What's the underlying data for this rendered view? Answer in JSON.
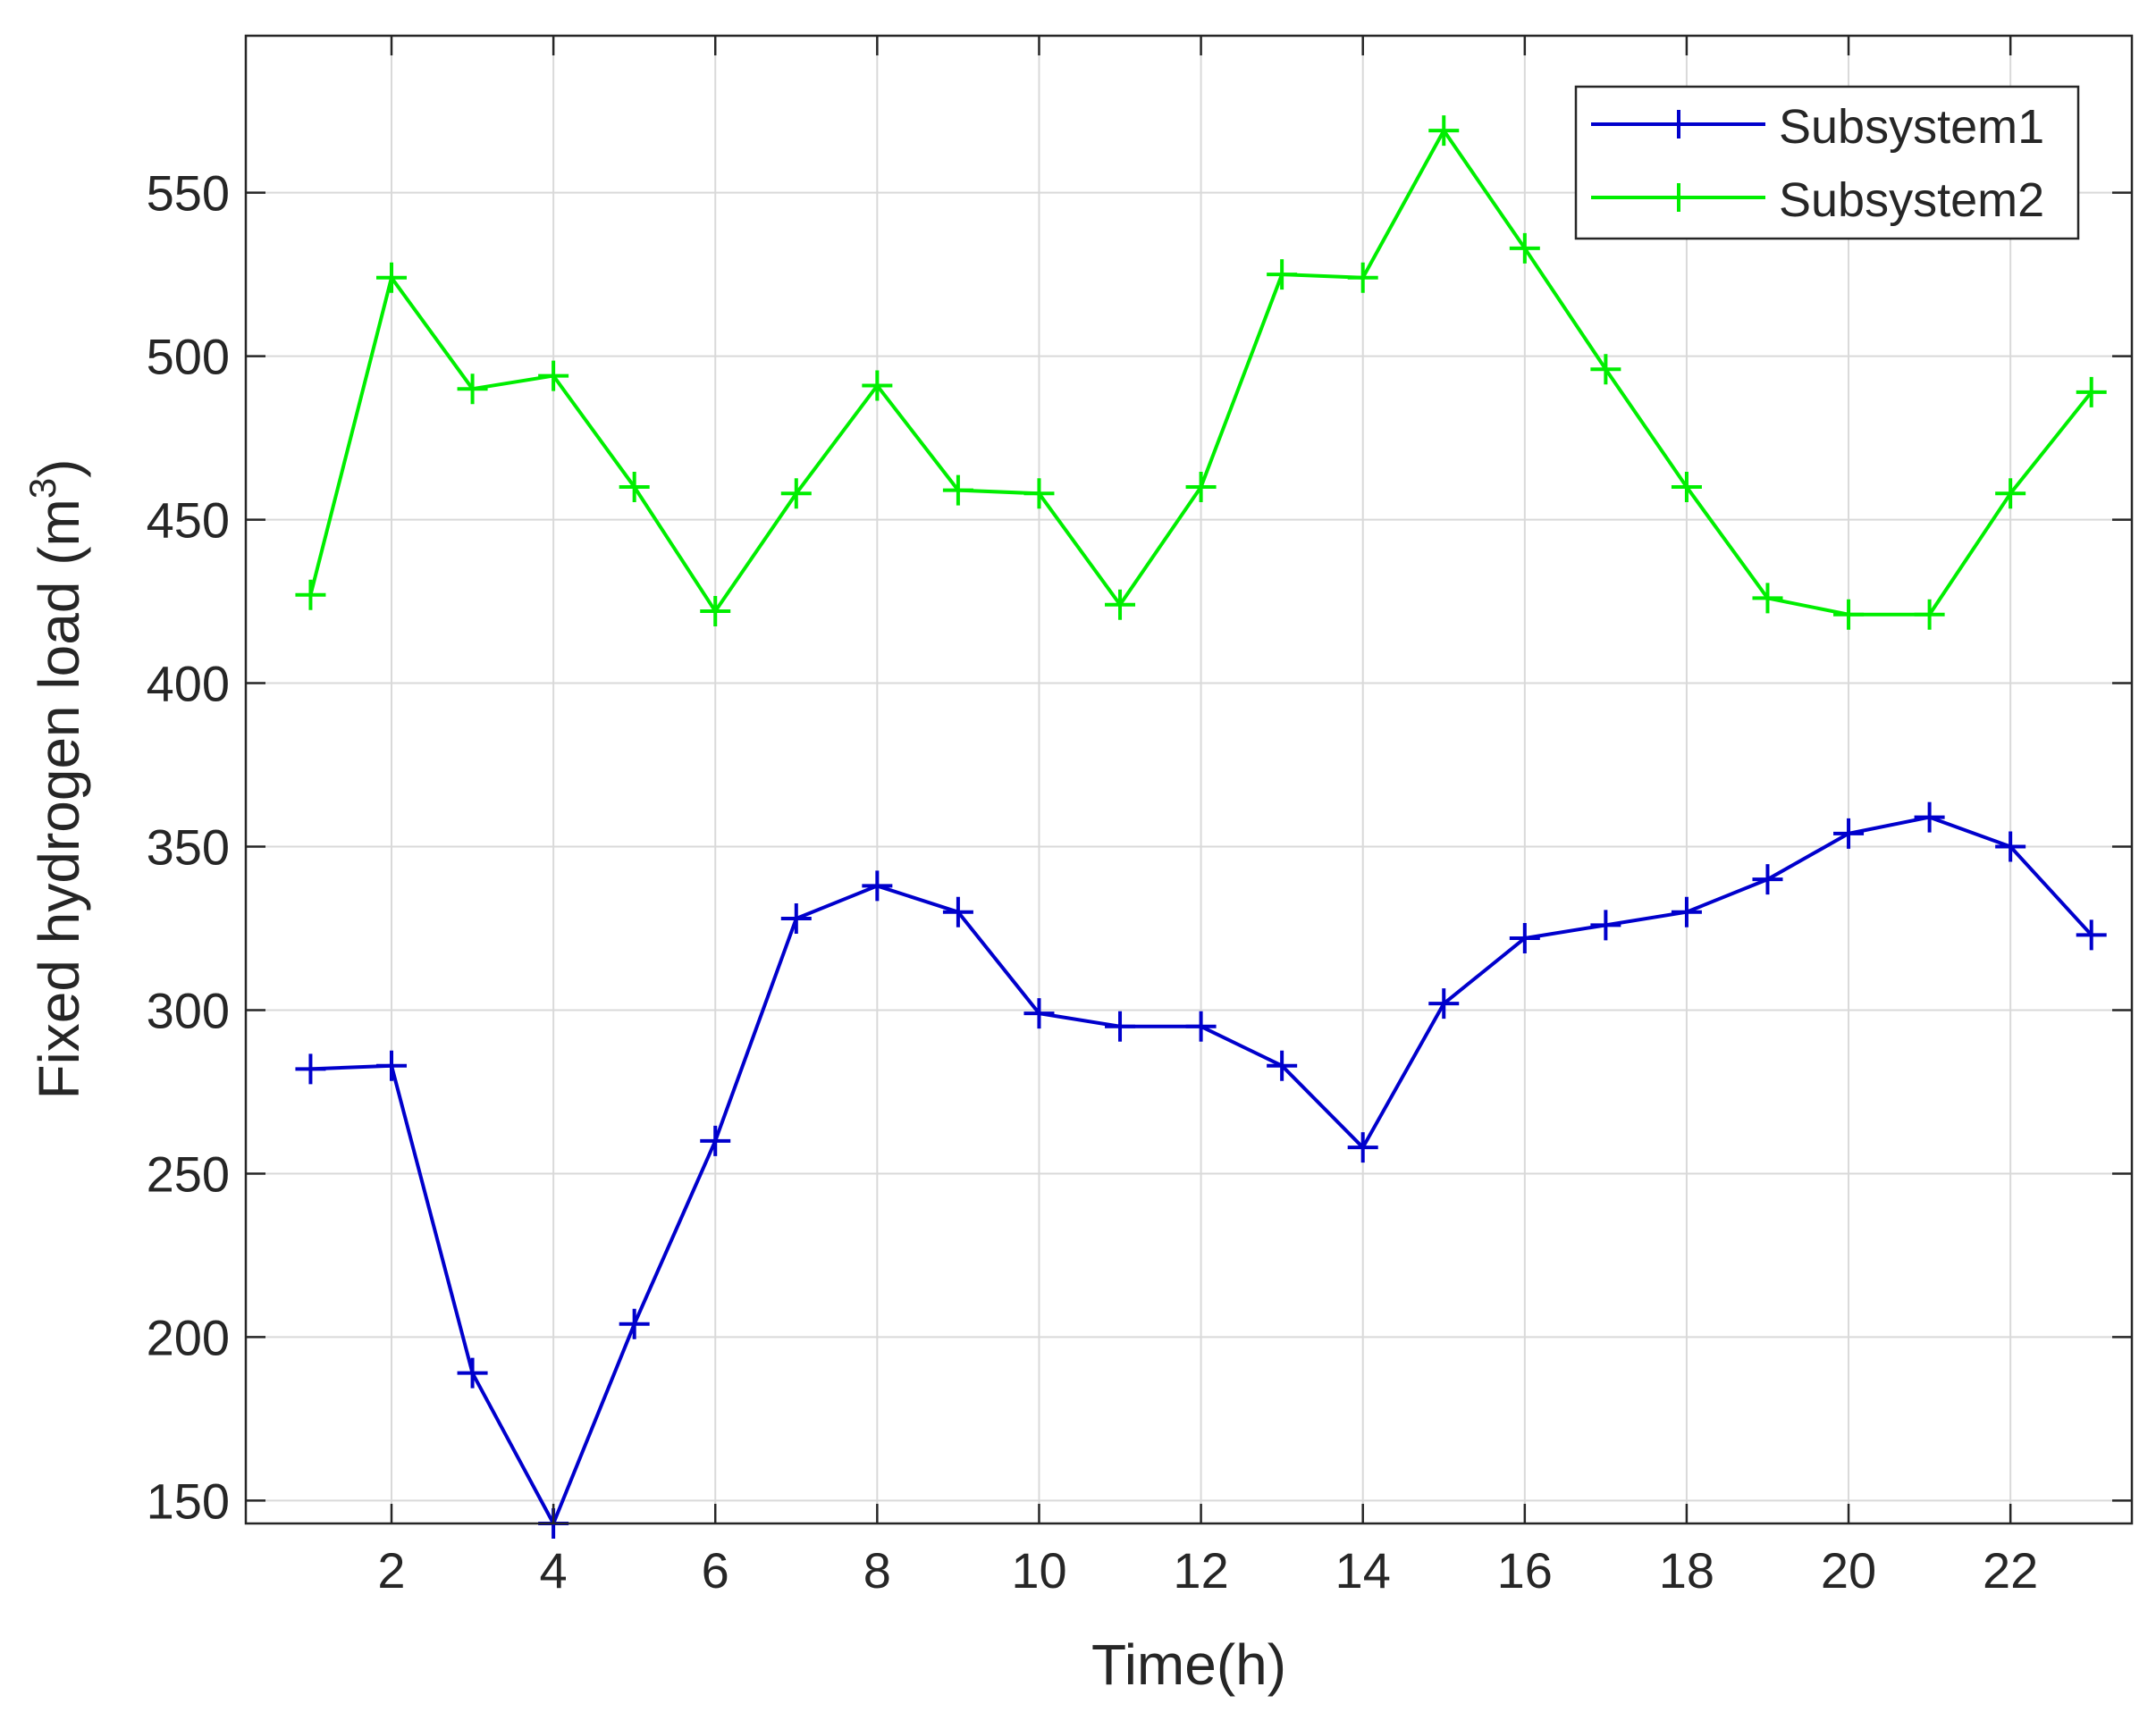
{
  "chart_data": {
    "type": "line",
    "title": "",
    "xlabel": "Time(h)",
    "ylabel_main": "Fixed hydrogen load (m",
    "ylabel_sup": "3",
    "ylabel_close": ")",
    "xlim": [
      0.2,
      23.5
    ],
    "ylim": [
      143,
      598
    ],
    "grid": true,
    "legend_position": "top-right",
    "x_ticks": [
      "2",
      "4",
      "6",
      "8",
      "10",
      "12",
      "14",
      "16",
      "18",
      "20",
      "22"
    ],
    "y_ticks": [
      "150",
      "200",
      "250",
      "300",
      "350",
      "400",
      "450",
      "500",
      "550"
    ],
    "x": [
      1,
      2,
      3,
      4,
      5,
      6,
      7,
      8,
      9,
      10,
      11,
      12,
      13,
      14,
      15,
      16,
      17,
      18,
      19,
      20,
      21,
      22,
      23
    ],
    "series": [
      {
        "name": "Subsystem1",
        "color": "#0000cc",
        "marker": "plus",
        "values": [
          282,
          283,
          189,
          143,
          204,
          260,
          328,
          338,
          330,
          299,
          295,
          295,
          283,
          258,
          302,
          322,
          326,
          330,
          340,
          354,
          359,
          350,
          323
        ]
      },
      {
        "name": "Subsystem2",
        "color": "#00ee00",
        "marker": "plus",
        "values": [
          427,
          524,
          490,
          494,
          460,
          422,
          458,
          491,
          459,
          458,
          424,
          460,
          525,
          524,
          569,
          533,
          496,
          460,
          426,
          421,
          421,
          458,
          489
        ]
      }
    ]
  }
}
